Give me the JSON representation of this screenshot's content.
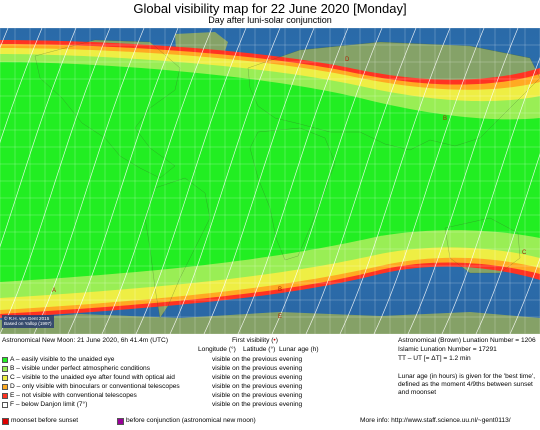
{
  "header": {
    "title": "Global visibility map for 22 June 2020 [Monday]",
    "subtitle": "Day after luni-solar conjunction"
  },
  "map": {
    "credit_line1": "© R.H. van Gent 2015",
    "credit_line2": "Based on Yallop (1997)",
    "zone_colors": {
      "A": "#22ee22",
      "B": "#99ee55",
      "C": "#eeee44",
      "D": "#ffaa22",
      "E": "#ff3322",
      "F": "#ffffff"
    },
    "zone_letters": [
      "A",
      "B",
      "C",
      "D",
      "E"
    ],
    "graticule": "on"
  },
  "info": {
    "new_moon": "Astronomical New Moon: 21 June 2020, 6h 41.4m (UTC)",
    "first_visibility": "First visibility (",
    "first_visibility_symbol": "•",
    "first_visibility_end": ")",
    "col_longitude": "Longitude (°)",
    "col_latitude": "Latitude (°)",
    "col_lunar_age": "Lunar age (h)",
    "lunation_brown": "Astronomical (Brown) Lunation Number = 1206",
    "lunation_islamic": "Islamic Lunation Number = 17291",
    "tt_ut": "TT – UT [= ΔT] = 1.2 min",
    "lunar_age_note1": "Lunar age (in hours) is given for the 'best time',",
    "lunar_age_note2": "defined as the moment 4/9ths between sunset",
    "lunar_age_note3": "and moonset"
  },
  "legend": [
    {
      "label": "A – easily visible to the unaided eye",
      "visibility": "visible on the previous evening",
      "color": "#22ee22"
    },
    {
      "label": "B – visible under perfect atmospheric conditions",
      "visibility": "visible on the previous evening",
      "color": "#99ee55"
    },
    {
      "label": "C – visible to the unaided eye after found with optical aid",
      "visibility": "visible on the previous evening",
      "color": "#eeee44"
    },
    {
      "label": "D – only visible with binoculars or conventional telescopes",
      "visibility": "visible on the previous evening",
      "color": "#ffaa22"
    },
    {
      "label": "E – not visible with conventional telescopes",
      "visibility": "visible on the previous evening",
      "color": "#ff3322"
    },
    {
      "label": "F – below Danjon limit (7°)",
      "visibility": "visible on the previous evening",
      "color": "#ffffff"
    }
  ],
  "footer": {
    "moonset_before_sunset": "moonset before sunset",
    "moonset_color": "#dd0000",
    "before_conjunction": "before conjunction (astronomical new moon)",
    "before_conjunction_color": "#990099",
    "more_info": "More info: http://www.staff.science.uu.nl/~gent0113/"
  }
}
